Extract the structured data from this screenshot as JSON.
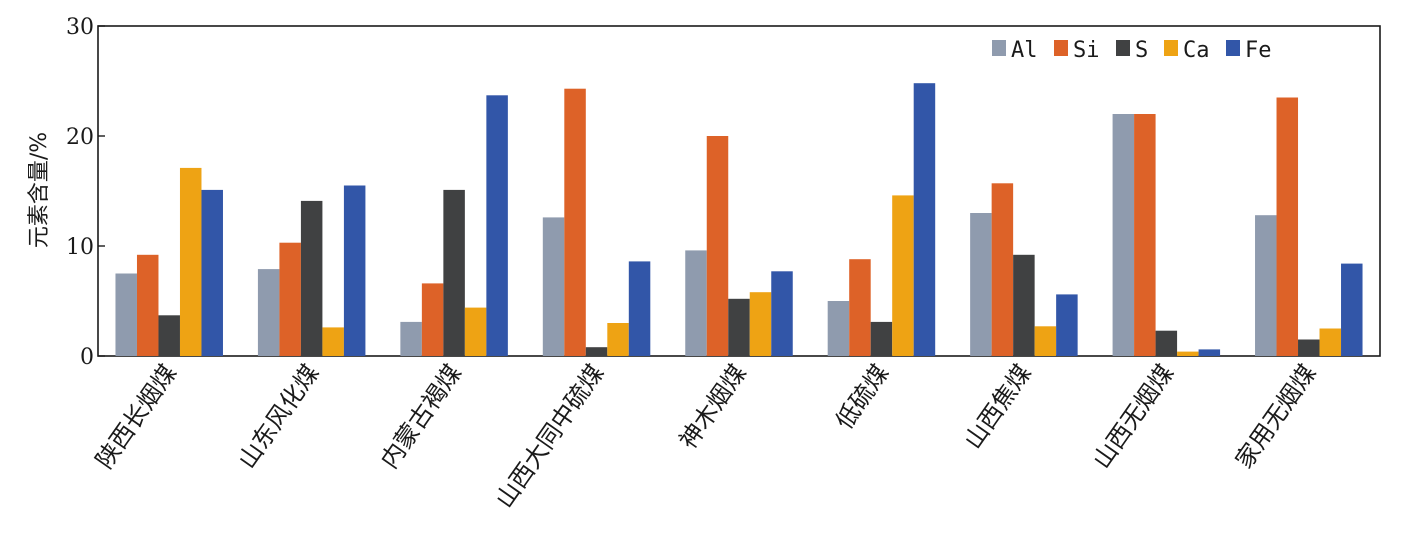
{
  "chart_data": {
    "type": "bar",
    "ylabel": "元素含量/%",
    "ylim": [
      0,
      30
    ],
    "yticks": [
      0,
      10,
      20,
      30
    ],
    "grid": false,
    "legend_position": "top-right",
    "categories": [
      "陕西长烟煤",
      "山东风化煤",
      "内蒙古褐煤",
      "山西大同中硫煤",
      "神木烟煤",
      "低硫煤",
      "山西焦煤",
      "山西无烟煤",
      "家用无烟煤"
    ],
    "series": [
      {
        "name": "Al",
        "color": "#8f9bae",
        "values": [
          7.5,
          7.9,
          3.1,
          12.6,
          9.6,
          5.0,
          13.0,
          22.0,
          12.8
        ]
      },
      {
        "name": "Si",
        "color": "#dd6228",
        "values": [
          9.2,
          10.3,
          6.6,
          24.3,
          20.0,
          8.8,
          15.7,
          22.0,
          23.5
        ]
      },
      {
        "name": "S",
        "color": "#404142",
        "values": [
          3.7,
          14.1,
          15.1,
          0.8,
          5.2,
          3.1,
          9.2,
          2.3,
          1.5
        ]
      },
      {
        "name": "Ca",
        "color": "#eea314",
        "values": [
          17.1,
          2.6,
          4.4,
          3.0,
          5.8,
          14.6,
          2.7,
          0.4,
          2.5
        ]
      },
      {
        "name": "Fe",
        "color": "#3256a8",
        "values": [
          15.1,
          15.5,
          23.7,
          8.6,
          7.7,
          24.8,
          5.6,
          0.6,
          8.4
        ]
      }
    ]
  }
}
